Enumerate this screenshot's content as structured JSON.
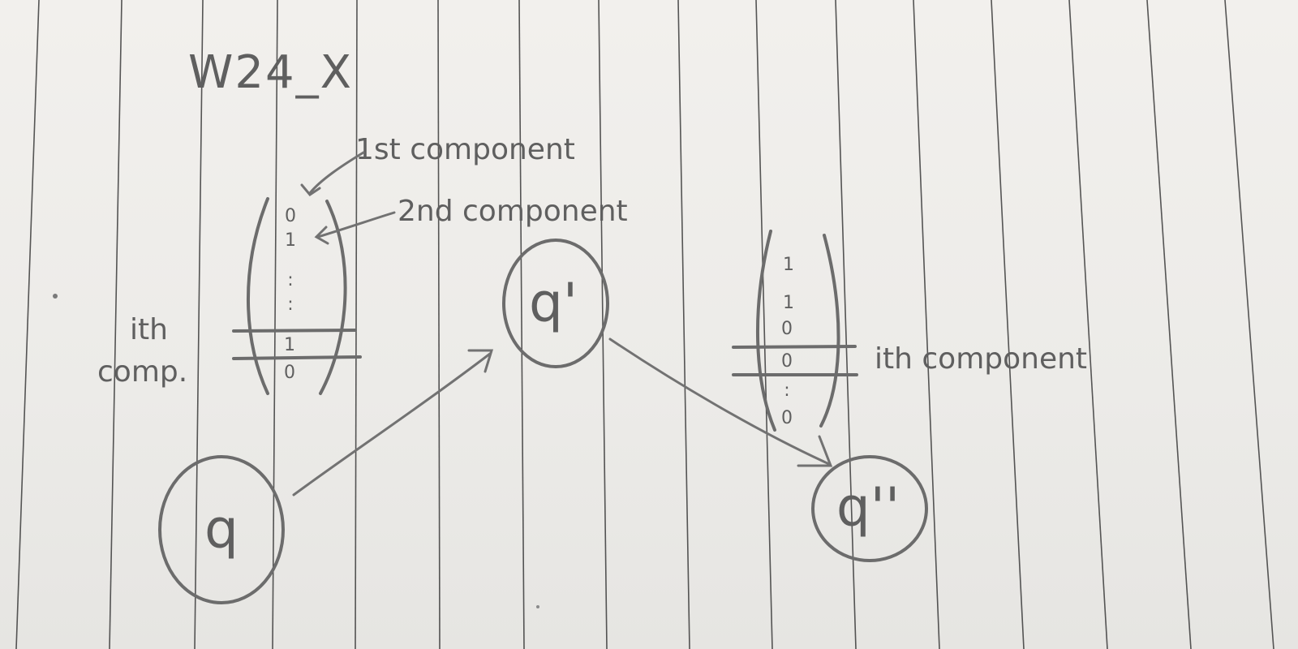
{
  "title": "W24_X",
  "annotations": {
    "first_component": "1st component",
    "second_component": "2nd component",
    "ith_label_line1": "ith",
    "ith_label_line2": "comp.",
    "ith_component": "ith component"
  },
  "states": {
    "q": "q",
    "q_prime": "q'",
    "q_double_prime": "q''"
  },
  "tape_left": {
    "cells": [
      "0",
      "1",
      ":",
      ":",
      "1",
      "0"
    ]
  },
  "tape_right": {
    "cells": [
      "1",
      "1",
      "0",
      "0",
      ":",
      "0"
    ]
  },
  "colors": {
    "ink": "#6c6c6c",
    "paper": "#efedea",
    "ruling": "#2a2a2a"
  }
}
